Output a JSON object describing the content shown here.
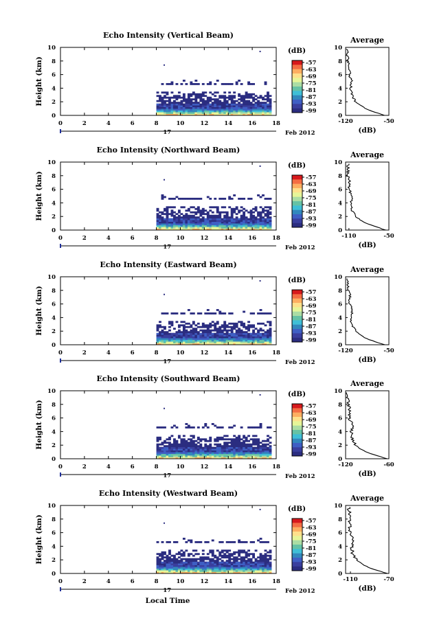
{
  "chart_data": {
    "type": "heatmap",
    "time_axis": {
      "label": "Local Time",
      "ticks": [
        "0",
        "2",
        "4",
        "6",
        "8",
        "10",
        "12",
        "14",
        "16",
        "18"
      ],
      "range": [
        0,
        18
      ]
    },
    "height_axis": {
      "label": "Height (km)",
      "ticks": [
        "0",
        "2",
        "4",
        "6",
        "8",
        "10"
      ],
      "range": [
        0,
        10
      ]
    },
    "date_label": "17",
    "month_label": "Feb 2012",
    "colorbar": {
      "unit_label": "(dB)",
      "ticks": [
        "-57",
        "-63",
        "-69",
        "-75",
        "-81",
        "-87",
        "-93",
        "-99"
      ],
      "colors": [
        "#d7191c",
        "#f46d43",
        "#fdae61",
        "#fee08b",
        "#e6f598",
        "#abdda4",
        "#66c2a5",
        "#3fbfd6",
        "#3288bd",
        "#3f5fc4",
        "#3a3f9e",
        "#2b2d80"
      ]
    },
    "average_panel": {
      "title": "Average",
      "xlabel": "(dB)",
      "yrange": [
        0,
        10
      ]
    },
    "data_start_hour": 8.0,
    "data_end_hour": 17.6,
    "panels": [
      {
        "title": "Echo Intensity (Vertical Beam)",
        "avg_ticks": [
          "-120",
          "-50"
        ],
        "avg_range": [
          -120,
          -50
        ],
        "avg_profile_height": [
          0,
          0.5,
          1,
          1.5,
          2,
          3,
          4,
          5,
          6,
          7,
          8,
          9,
          9.8
        ],
        "avg_profile_db": [
          -57,
          -74,
          -88,
          -96,
          -104,
          -110,
          -112,
          -110,
          -114,
          -113,
          -116,
          -117,
          -118
        ]
      },
      {
        "title": "Echo Intensity (Northward Beam)",
        "avg_ticks": [
          "-110",
          "-50"
        ],
        "avg_range": [
          -115,
          -50
        ],
        "avg_profile_height": [
          0,
          0.5,
          1,
          1.5,
          2,
          3,
          4,
          5,
          6,
          7,
          8,
          9,
          9.8
        ],
        "avg_profile_db": [
          -55,
          -70,
          -84,
          -93,
          -100,
          -106,
          -108,
          -105,
          -110,
          -109,
          -112,
          -111,
          -112
        ]
      },
      {
        "title": "Echo Intensity (Eastward Beam)",
        "avg_ticks": [
          "-120",
          "-50"
        ],
        "avg_range": [
          -120,
          -50
        ],
        "avg_profile_height": [
          0,
          0.5,
          1,
          1.5,
          2,
          3,
          4,
          5,
          6,
          7,
          8,
          9,
          9.8
        ],
        "avg_profile_db": [
          -57,
          -74,
          -89,
          -97,
          -104,
          -110,
          -111,
          -109,
          -114,
          -113,
          -115,
          -116,
          -117
        ]
      },
      {
        "title": "Echo Intensity (Southward Beam)",
        "avg_ticks": [
          "-120",
          "-60"
        ],
        "avg_range": [
          -120,
          -60
        ],
        "avg_profile_height": [
          0,
          0.5,
          1,
          1.5,
          2,
          3,
          4,
          5,
          6,
          7,
          8,
          9,
          9.8
        ],
        "avg_profile_db": [
          -62,
          -78,
          -92,
          -100,
          -106,
          -111,
          -112,
          -110,
          -115,
          -114,
          -116,
          -117,
          -118
        ]
      },
      {
        "title": "Echo Intensity (Westward Beam)",
        "avg_ticks": [
          "-110",
          "-70"
        ],
        "avg_range": [
          -115,
          -70
        ],
        "avg_profile_height": [
          0,
          0.5,
          1,
          1.5,
          2,
          3,
          4,
          5,
          6,
          7,
          8,
          9,
          9.8
        ],
        "avg_profile_db": [
          -72,
          -83,
          -93,
          -99,
          -104,
          -108,
          -109,
          -107,
          -111,
          -110,
          -112,
          -111,
          -112
        ]
      }
    ]
  }
}
